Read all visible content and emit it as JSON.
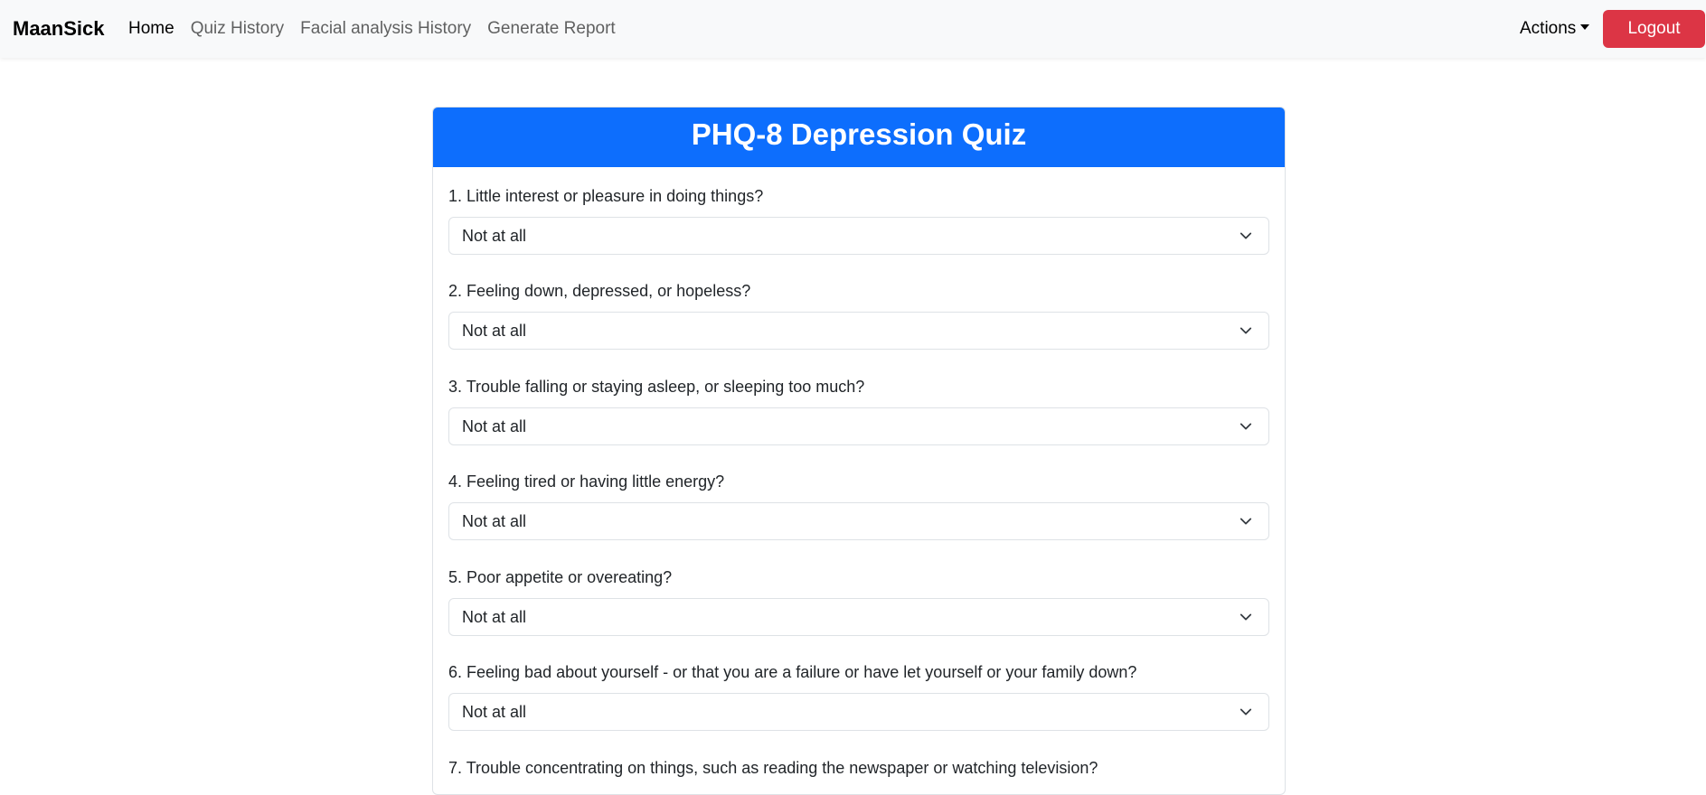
{
  "navbar": {
    "brand": "MaanSick",
    "links": [
      "Home",
      "Quiz History",
      "Facial analysis History",
      "Generate Report"
    ],
    "actions_label": "Actions",
    "logout_label": "Logout"
  },
  "quiz": {
    "title": "PHQ-8 Depression Quiz",
    "questions": [
      {
        "label": "1. Little interest or pleasure in doing things?",
        "value": "Not at all"
      },
      {
        "label": "2. Feeling down, depressed, or hopeless?",
        "value": "Not at all"
      },
      {
        "label": "3. Trouble falling or staying asleep, or sleeping too much?",
        "value": "Not at all"
      },
      {
        "label": "4. Feeling tired or having little energy?",
        "value": "Not at all"
      },
      {
        "label": "5. Poor appetite or overeating?",
        "value": "Not at all"
      },
      {
        "label": "6. Feeling bad about yourself - or that you are a failure or have let yourself or your family down?",
        "value": "Not at all"
      },
      {
        "label": "7. Trouble concentrating on things, such as reading the newspaper or watching television?",
        "value": ""
      }
    ]
  },
  "colors": {
    "primary": "#0d6efd",
    "danger": "#dc3545",
    "navbar_bg": "#f8f9fa"
  }
}
